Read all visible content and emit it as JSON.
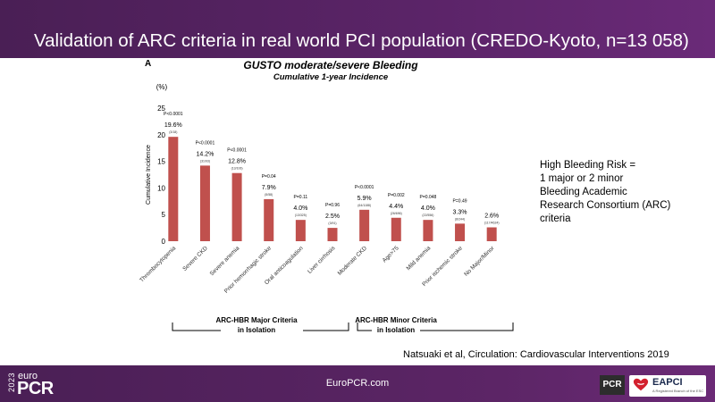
{
  "header": {
    "title": "Validation of ARC criteria in real world PCI population (CREDO-Kyoto, n=13 058)"
  },
  "panel_letter": "A",
  "chart_data": {
    "type": "bar",
    "title": "GUSTO moderate/severe Bleeding",
    "subtitle": "Cumulative 1-year Incidence",
    "ylabel": "Cumulative Incidence",
    "yunit": "(%)",
    "ylim": [
      0,
      25
    ],
    "yticks": [
      0,
      5,
      10,
      15,
      20,
      25
    ],
    "grid": false,
    "bar_color": "#c0504d",
    "categories": [
      "Thrombocytopenia",
      "Severe CKD",
      "Severe anemia",
      "Prior hemorrhagic stroke",
      "Oral anticoagulation",
      "Liver cirrhosis",
      "Moderate CKD",
      "Age>75",
      "Mild anemia",
      "Prior ischemic stroke",
      "No Major/Minor"
    ],
    "values": [
      19.6,
      14.2,
      12.8,
      7.9,
      4.0,
      2.5,
      5.9,
      4.4,
      4.0,
      3.3,
      2.6
    ],
    "value_labels": [
      "19.6%",
      "14.2%",
      "12.8%",
      "7.9%",
      "4.0%",
      "2.5%",
      "5.9%",
      "4.4%",
      "4.0%",
      "3.3%",
      "2.6%"
    ],
    "p_values": [
      "P<0.0001",
      "P<0.0001",
      "P<0.0001",
      "P=0.04",
      "P=0.11",
      "P=0.96",
      "P<0.0001",
      "P=0.002",
      "P=0.048",
      "P=0.49",
      ""
    ],
    "counts": [
      "(3/18)",
      "(31/93)",
      "(13/106)",
      "(5/58)",
      "(13/325)",
      "(3/91)",
      "(64/1188)",
      "(26/696)",
      "(22/556)",
      "(8/244)",
      "(117/4624)"
    ],
    "groups": [
      {
        "label_line1": "ARC-HBR Major Criteria",
        "label_line2": "in Isolation"
      },
      {
        "label_line1": "ARC-HBR Minor Criteria",
        "label_line2": "in Isolation"
      }
    ]
  },
  "hbr_note": [
    "High Bleeding Risk =",
    "1 major or 2 minor",
    "Bleeding Academic",
    "Research Consortium (ARC)",
    "criteria"
  ],
  "citation": "Natsuaki et al, Circulation: Cardiovascular Interventions 2019",
  "footer": {
    "logo_year": "2023",
    "logo_euro": "euro",
    "logo_pcr": "PCR",
    "url": "EuroPCR.com",
    "pcr_badge": "PCR",
    "eapci_name": "EAPCI",
    "eapci_sub": "A Registered Branch of the ESC"
  }
}
